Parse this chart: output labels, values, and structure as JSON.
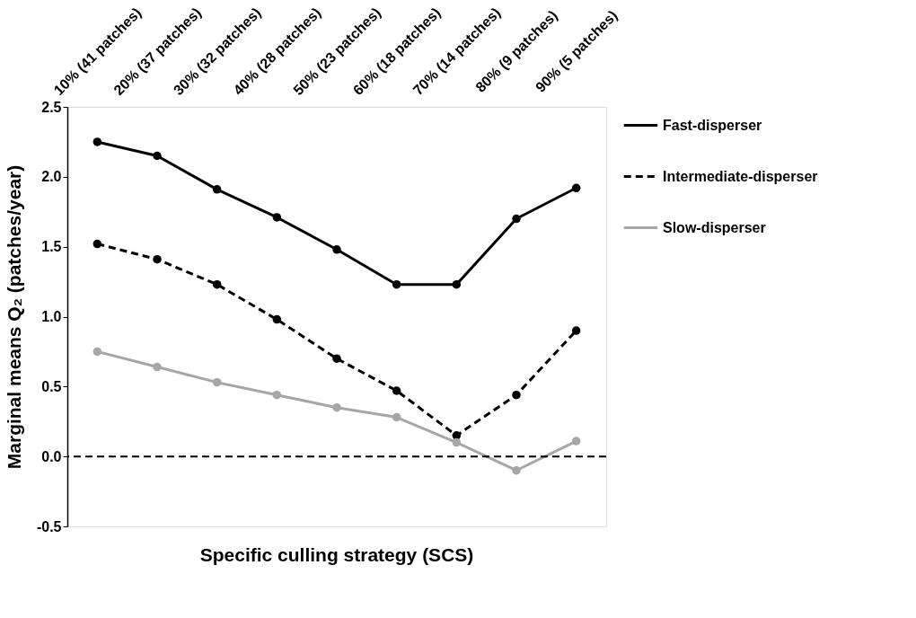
{
  "chart_data": {
    "type": "line",
    "xlabel": "Specific culling strategy (SCS)",
    "ylabel": "Marginal means Q₂ (patches/year)",
    "categories": [
      "10% (41 patches)",
      "20% (37 patches)",
      "30% (32 patches)",
      "40% (28 patches)",
      "50% (23 patches)",
      "60% (18 patches)",
      "70% (14 patches)",
      "80% (9 patches)",
      "90% (5 patches)"
    ],
    "series": [
      {
        "name": "Fast-disperser",
        "color": "#000000",
        "line_style": "solid",
        "values": [
          2.25,
          2.15,
          1.91,
          1.71,
          1.48,
          1.23,
          1.23,
          1.7,
          1.92
        ]
      },
      {
        "name": "Intermediate-disperser",
        "color": "#000000",
        "line_style": "dashed",
        "values": [
          1.52,
          1.41,
          1.23,
          0.98,
          0.7,
          0.47,
          0.15,
          0.44,
          0.9
        ]
      },
      {
        "name": "Slow-disperser",
        "color": "#a6a6a6",
        "line_style": "solid",
        "values": [
          0.75,
          0.64,
          0.53,
          0.44,
          0.35,
          0.28,
          0.1,
          -0.1,
          0.11
        ]
      }
    ],
    "ylim": [
      -0.5,
      2.5
    ],
    "yticks": [
      {
        "value": -0.5,
        "label": "-0.5"
      },
      {
        "value": 0,
        "label": "0.0"
      },
      {
        "value": 0.5,
        "label": "0.5"
      },
      {
        "value": 1,
        "label": "1.0"
      },
      {
        "value": 1.5,
        "label": "1.5"
      },
      {
        "value": 2,
        "label": "2.0"
      },
      {
        "value": 2.5,
        "label": "2.5"
      }
    ],
    "ref_lines": [
      {
        "axis": "y",
        "value": 0,
        "color": "#000000",
        "line_style": "dashed"
      }
    ],
    "marker": "circle",
    "legend": "right",
    "grid": false
  }
}
